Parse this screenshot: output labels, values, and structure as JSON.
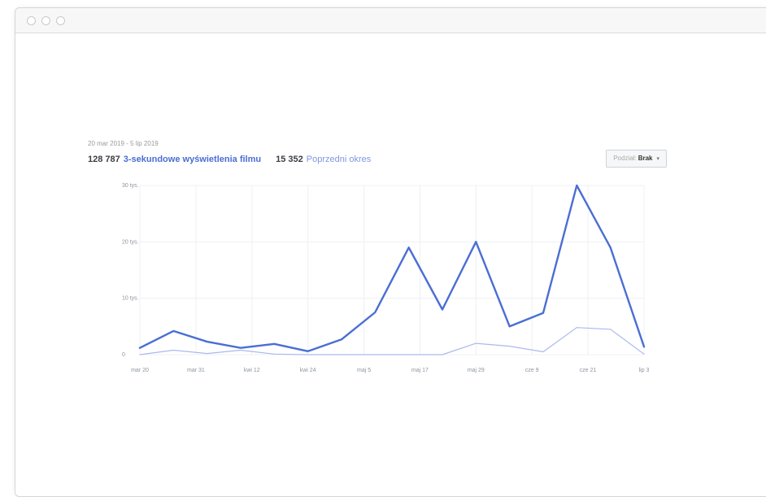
{
  "window": {
    "controls": [
      "close",
      "minimize",
      "maximize"
    ]
  },
  "header": {
    "date_range": "20 mar 2019 - 5 lip 2019",
    "primary_metric": {
      "value": "128 787",
      "label": "3-sekundowe wyświetlenia filmu"
    },
    "secondary_metric": {
      "value": "15 352",
      "label": "Poprzedni okres"
    },
    "breakdown": {
      "label": "Podział:",
      "value": "Brak",
      "arrow": "▾"
    }
  },
  "colors": {
    "primary": "#4a6ed3",
    "secondary": "#aab9ee",
    "grid": "#eef0f3"
  },
  "chart_data": {
    "type": "line",
    "x_ticks": [
      "mar 20",
      "mar 31",
      "kwi 12",
      "kwi 24",
      "maj 5",
      "maj 17",
      "maj 29",
      "cze 9",
      "cze 21",
      "lip 3"
    ],
    "y_ticks": [
      "0",
      "10 tys.",
      "20 tys.",
      "30 tys."
    ],
    "ylim": [
      0,
      30000
    ],
    "series": [
      {
        "name": "3-sekundowe wyświetlenia filmu",
        "values": [
          1200,
          4200,
          2300,
          1200,
          1900,
          600,
          2700,
          7500,
          19000,
          8000,
          20000,
          5000,
          7400,
          30000,
          19000,
          1400
        ]
      },
      {
        "name": "Poprzedni okres",
        "values": [
          0,
          800,
          200,
          800,
          100,
          0,
          0,
          0,
          0,
          0,
          2000,
          1500,
          500,
          4800,
          4500,
          100
        ]
      }
    ],
    "grid": true,
    "legend": "none"
  }
}
